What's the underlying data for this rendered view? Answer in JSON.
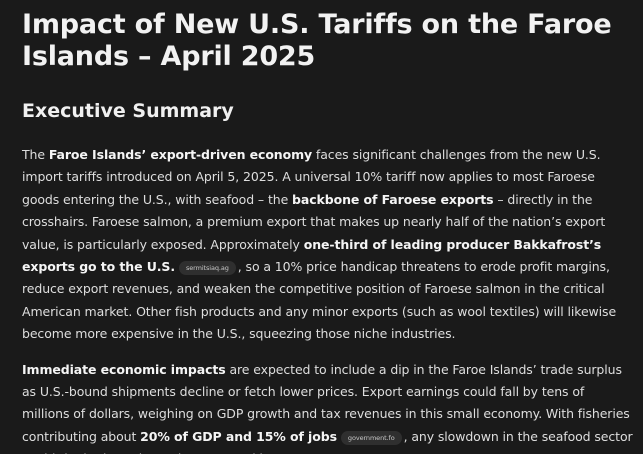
{
  "document": {
    "title": "Impact of New U.S. Tariffs on the Faroe Islands – April 2025",
    "section_heading": "Executive Summary",
    "paragraph1": {
      "s1": "The ",
      "b1": "Faroe Islands’ export-driven economy",
      "s2": " faces significant challenges from the new U.S. import tariffs introduced on April 5, 2025. A universal 10% tariff now applies to most Faroese goods entering the U.S., with seafood – the ",
      "b2": "backbone of Faroese exports",
      "s3": " – directly in the crosshairs. Faroese salmon, a premium export that makes up nearly half of the nation’s export value, is particularly exposed. Approximately ",
      "b3": "one-third of leading producer Bakkafrost’s exports go to the U.S.",
      "cite1": "sermitsiaq.ag",
      "s4": ", so a 10% price handicap threatens to erode profit margins, reduce export revenues, and weaken the competitive position of Faroese salmon in the critical American market. Other fish products and any minor exports (such as wool textiles) will likewise become more expensive in the U.S., squeezing those niche industries."
    },
    "paragraph2": {
      "b1": "Immediate economic impacts",
      "s1": " are expected to include a dip in the Faroe Islands’ trade surplus as U.S.-bound shipments decline or fetch lower prices. Export earnings could fall by tens of millions of dollars, weighing on GDP growth and tax revenues in this small economy. With fisheries contributing about ",
      "b2": "20% of GDP and 15% of jobs",
      "cite1": "government.fo",
      "s2": ", any slowdown in the seafood sector could ripple through employment and incomes."
    }
  }
}
